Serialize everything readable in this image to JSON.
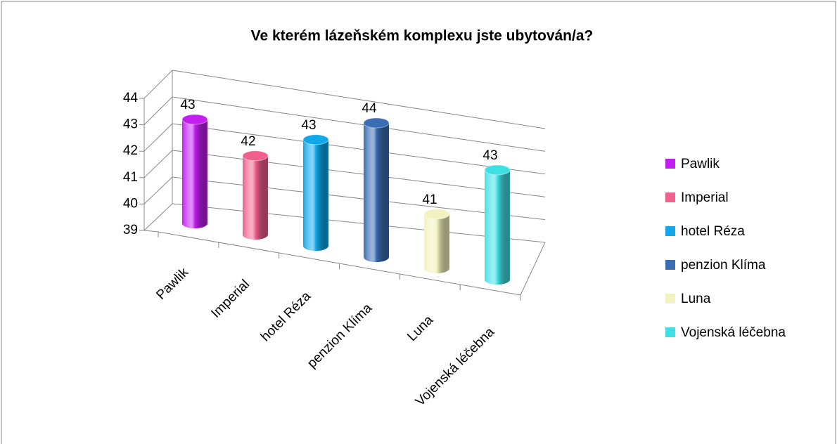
{
  "chart_data": {
    "type": "bar3d",
    "title": "Ve kterém lázeňském komplexu jste ubytován/a?",
    "categories": [
      "Pawlik",
      "Imperial",
      "hotel Réza",
      "penzion Klíma",
      "Luna",
      "Vojenská léčebna"
    ],
    "values": [
      43,
      42,
      43,
      44,
      41,
      43
    ],
    "colors": [
      "#c21ef2",
      "#f0608c",
      "#10a8e8",
      "#3a6db2",
      "#f2f2c0",
      "#3fe0e4"
    ],
    "ylim": [
      39,
      44
    ],
    "yticks": [
      39,
      40,
      41,
      42,
      43,
      44
    ],
    "grid": true,
    "legend": "right"
  }
}
